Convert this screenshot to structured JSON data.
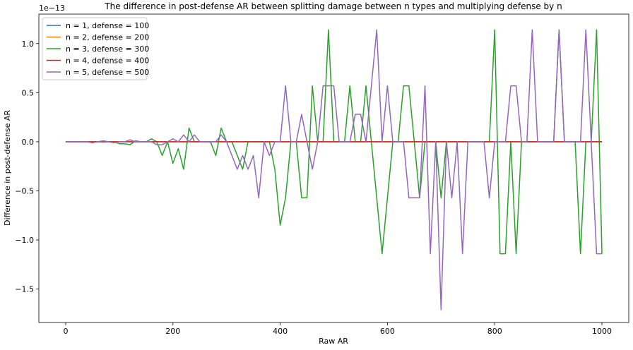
{
  "chart_data": {
    "type": "line",
    "title": "The difference in post-defense AR between splitting damage between n types and multiplying defense by n",
    "x_label": "Raw AR",
    "y_label": "Difference in post-defense AR",
    "y_offset_label": "1e−13",
    "x": [
      0,
      10,
      20,
      30,
      40,
      50,
      60,
      70,
      80,
      90,
      100,
      110,
      120,
      130,
      140,
      150,
      160,
      170,
      180,
      190,
      200,
      210,
      220,
      230,
      240,
      250,
      260,
      270,
      280,
      290,
      300,
      310,
      320,
      330,
      340,
      350,
      360,
      370,
      380,
      390,
      400,
      410,
      420,
      430,
      440,
      450,
      460,
      470,
      480,
      490,
      500,
      510,
      520,
      530,
      540,
      550,
      560,
      570,
      580,
      590,
      600,
      610,
      620,
      630,
      640,
      650,
      660,
      670,
      680,
      690,
      700,
      710,
      720,
      730,
      740,
      750,
      760,
      770,
      780,
      790,
      800,
      810,
      820,
      830,
      840,
      850,
      860,
      870,
      880,
      890,
      900,
      910,
      920,
      930,
      940,
      950,
      960,
      970,
      980,
      990,
      1000
    ],
    "series": [
      {
        "name": "n = 1, defense = 100",
        "color": "#1f77b4",
        "values": [
          0,
          0,
          0,
          0,
          0,
          0,
          0,
          0,
          0,
          0,
          0,
          0,
          0,
          0,
          0,
          0,
          0,
          0,
          0,
          0,
          0,
          0,
          0,
          0,
          0,
          0,
          0,
          0,
          0,
          0,
          0,
          0,
          0,
          0,
          0,
          0,
          0,
          0,
          0,
          0,
          0,
          0,
          0,
          0,
          0,
          0,
          0,
          0,
          0,
          0,
          0,
          0,
          0,
          0,
          0,
          0,
          0,
          0,
          0,
          0,
          0,
          0,
          0,
          0,
          0,
          0,
          0,
          0,
          0,
          0,
          0,
          0,
          0,
          0,
          0,
          0,
          0,
          0,
          0,
          0,
          0,
          0,
          0,
          0,
          0,
          0,
          0,
          0,
          0,
          0,
          0,
          0,
          0,
          0,
          0,
          0,
          0,
          0,
          0,
          0,
          0
        ]
      },
      {
        "name": "n = 2, defense = 200",
        "color": "#ff7f0e",
        "values": [
          0,
          0,
          0,
          0,
          0,
          0,
          0,
          0,
          0,
          0,
          0,
          0,
          0,
          0,
          0,
          0,
          0,
          0,
          0,
          0,
          0,
          0,
          0,
          0,
          0,
          0,
          0,
          0,
          0,
          0,
          0,
          0,
          0,
          0,
          0,
          0,
          0,
          0,
          0,
          0,
          0,
          0,
          0,
          0,
          0,
          0,
          0,
          0,
          0,
          0,
          0,
          0,
          0,
          0,
          0,
          0,
          0,
          0,
          0,
          0,
          0,
          0,
          0,
          0,
          0,
          0,
          0,
          0,
          0,
          0,
          0,
          0,
          0,
          0,
          0,
          0,
          0,
          0,
          0,
          0,
          0,
          0,
          0,
          0,
          0,
          0,
          0,
          0,
          0,
          0,
          0,
          0,
          0,
          0,
          0,
          0,
          0,
          0,
          0,
          0,
          0
        ]
      },
      {
        "name": "n = 3, defense = 300",
        "color": "#2ca02c",
        "values": [
          0,
          0,
          0,
          0,
          0,
          0,
          0,
          0,
          0,
          0,
          -0.02,
          -0.02,
          -0.03,
          0.01,
          0,
          0,
          0.03,
          0,
          -0.14,
          0,
          -0.22,
          -0.07,
          -0.28,
          0.14,
          0,
          0,
          0,
          0,
          -0.14,
          0.14,
          0,
          0,
          -0.14,
          -0.28,
          0,
          0,
          0,
          0,
          0,
          -0.28,
          -0.85,
          -0.57,
          0,
          0,
          -0.57,
          -0.57,
          0.57,
          0,
          0,
          1.14,
          0,
          0,
          0,
          0.57,
          0,
          0,
          0.57,
          0,
          -0.57,
          -1.14,
          -0.57,
          0,
          0,
          0.57,
          0.57,
          0,
          -0.57,
          0,
          0,
          0,
          -0.57,
          0,
          0,
          0,
          0,
          0,
          0,
          0,
          0,
          0,
          1.14,
          -1.14,
          -1.14,
          0,
          -1.14,
          0,
          0,
          0,
          0,
          0,
          0,
          0,
          1.14,
          0,
          0,
          0,
          -1.14,
          0,
          0,
          1.14,
          -1.14
        ]
      },
      {
        "name": "n = 4, defense = 400",
        "color": "#d62728",
        "values": [
          0,
          0,
          0,
          0,
          0,
          0,
          0,
          0,
          0,
          0,
          0,
          0,
          0,
          0,
          0,
          0,
          0,
          0,
          0,
          0,
          0,
          0,
          0,
          0,
          0,
          0,
          0,
          0,
          0,
          0,
          0,
          0,
          0,
          0,
          0,
          0,
          0,
          0,
          0,
          0,
          0,
          0,
          0,
          0,
          0,
          0,
          0,
          0,
          0,
          0,
          0,
          0,
          0,
          0,
          0,
          0,
          0,
          0,
          0,
          0,
          0,
          0,
          0,
          0,
          0,
          0,
          0,
          0,
          0,
          0,
          0,
          0,
          0,
          0,
          0,
          0,
          0,
          0,
          0,
          0,
          0,
          0,
          0,
          0,
          0,
          0,
          0,
          0,
          0,
          0,
          0,
          0,
          0,
          0,
          0,
          0,
          0,
          0,
          0,
          0,
          0
        ]
      },
      {
        "name": "n = 5, defense = 500",
        "color": "#9467bd",
        "values": [
          0,
          0,
          0,
          0,
          0,
          -0.01,
          0,
          0.01,
          0,
          -0.01,
          0,
          0,
          0.02,
          0,
          0,
          0,
          0,
          -0.03,
          -0.03,
          0,
          0.03,
          0,
          0.07,
          0,
          0.07,
          0,
          0,
          0,
          0,
          0.07,
          0,
          -0.14,
          -0.28,
          -0.14,
          -0.28,
          -0.14,
          -0.57,
          0,
          -0.14,
          0,
          0,
          0.57,
          0,
          0,
          0.28,
          0,
          -0.28,
          0,
          0.57,
          0.57,
          0.57,
          0,
          0,
          0,
          0.28,
          0.28,
          0,
          0.57,
          1.14,
          0,
          0.57,
          0,
          0,
          0,
          -0.57,
          -0.57,
          -0.57,
          0.57,
          -1.14,
          0,
          -1.71,
          0,
          -0.57,
          0,
          -1.14,
          0,
          0,
          0,
          0,
          -0.57,
          0,
          0,
          0,
          0.57,
          0.57,
          0,
          0,
          1.14,
          0,
          0,
          0,
          0,
          1.14,
          0,
          0,
          0,
          0,
          1.14,
          0,
          -1.14,
          -1.14
        ]
      }
    ],
    "xlim": [
      -50,
      1050
    ],
    "ylim": [
      -1.84,
      1.3
    ],
    "xticks": [
      0,
      200,
      400,
      600,
      800,
      1000
    ],
    "yticks": [
      {
        "value": -1.5,
        "label": "−1.5"
      },
      {
        "value": -1,
        "label": "−1.0"
      },
      {
        "value": -0.5,
        "label": "−0.5"
      },
      {
        "value": 0,
        "label": "0.0"
      },
      {
        "value": 0.5,
        "label": "0.5"
      },
      {
        "value": 1,
        "label": "1.0"
      }
    ],
    "legend": "upper left",
    "grid": false
  }
}
